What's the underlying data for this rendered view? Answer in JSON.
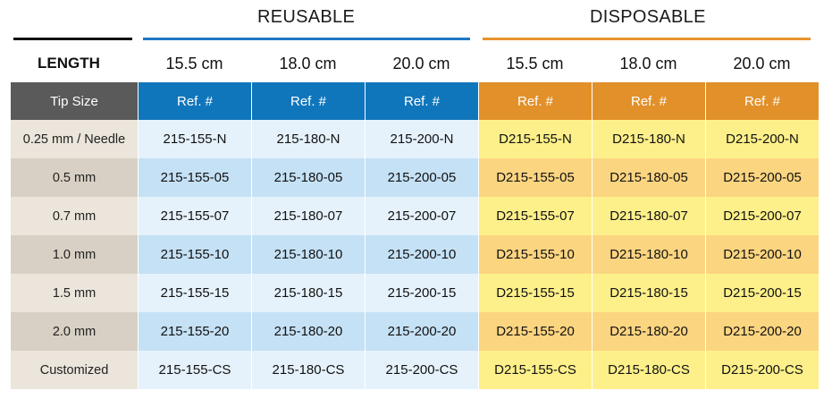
{
  "groups": {
    "reusable_label": "REUSABLE",
    "disposable_label": "DISPOSABLE"
  },
  "colors": {
    "reusable_line": "#1e78c2",
    "disposable_line": "#e8922e",
    "tip_header_bg": "#5a5a5a",
    "reusable_header_bg": "#1076bb",
    "disposable_header_bg": "#e2902a",
    "label_light": "#ebe5db",
    "label_dark": "#d8d0c4",
    "reusable_light": "#e6f2fb",
    "reusable_dark": "#c5e1f5",
    "disposable_light": "#fdf08a",
    "disposable_dark": "#fbd580"
  },
  "lengths": {
    "label": "LENGTH",
    "values": [
      "15.5 cm",
      "18.0 cm",
      "20.0 cm",
      "15.5 cm",
      "18.0 cm",
      "20.0 cm"
    ]
  },
  "table": {
    "header": [
      "Tip Size",
      "Ref. #",
      "Ref. #",
      "Ref. #",
      "Ref. #",
      "Ref. #",
      "Ref. #"
    ],
    "rows": [
      [
        "0.25 mm / Needle",
        "215-155-N",
        "215-180-N",
        "215-200-N",
        "D215-155-N",
        "D215-180-N",
        "D215-200-N"
      ],
      [
        "0.5 mm",
        "215-155-05",
        "215-180-05",
        "215-200-05",
        "D215-155-05",
        "D215-180-05",
        "D215-200-05"
      ],
      [
        "0.7 mm",
        "215-155-07",
        "215-180-07",
        "215-200-07",
        "D215-155-07",
        "D215-180-07",
        "D215-200-07"
      ],
      [
        "1.0 mm",
        "215-155-10",
        "215-180-10",
        "215-200-10",
        "D215-155-10",
        "D215-180-10",
        "D215-200-10"
      ],
      [
        "1.5 mm",
        "215-155-15",
        "215-180-15",
        "215-200-15",
        "D215-155-15",
        "D215-180-15",
        "D215-200-15"
      ],
      [
        "2.0 mm",
        "215-155-20",
        "215-180-20",
        "215-200-20",
        "D215-155-20",
        "D215-180-20",
        "D215-200-20"
      ],
      [
        "Customized",
        "215-155-CS",
        "215-180-CS",
        "215-200-CS",
        "D215-155-CS",
        "D215-180-CS",
        "D215-200-CS"
      ]
    ]
  }
}
